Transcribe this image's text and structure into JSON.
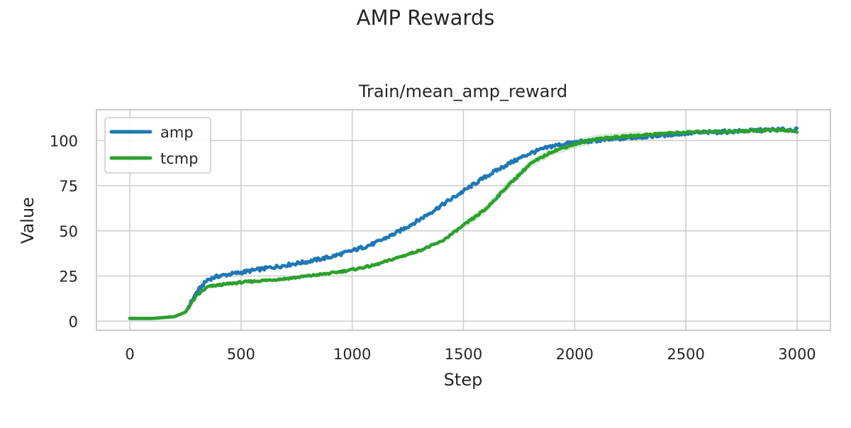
{
  "figure": {
    "suptitle": "AMP Rewards"
  },
  "chart_data": {
    "type": "line",
    "title": "Train/mean_amp_reward",
    "xlabel": "Step",
    "ylabel": "Value",
    "xlim": [
      -150,
      3150
    ],
    "ylim": [
      -5,
      117
    ],
    "xticks": [
      0,
      500,
      1000,
      1500,
      2000,
      2500,
      3000
    ],
    "yticks": [
      0,
      25,
      50,
      75,
      100
    ],
    "grid": true,
    "legend_position": "top-left",
    "series": [
      {
        "name": "amp",
        "color": "#1f77b4",
        "x": [
          0,
          100,
          200,
          250,
          300,
          350,
          400,
          500,
          600,
          700,
          800,
          900,
          1000,
          1100,
          1200,
          1300,
          1400,
          1500,
          1600,
          1700,
          1800,
          1900,
          2000,
          2100,
          2200,
          2300,
          2400,
          2500,
          2600,
          2700,
          2800,
          2900,
          3000
        ],
        "values": [
          1.5,
          1.5,
          2.5,
          5,
          16,
          23,
          25,
          27,
          29,
          31,
          33,
          35.5,
          39,
          43,
          49,
          56,
          64,
          72,
          80,
          87,
          93,
          97,
          99,
          100,
          101,
          102,
          103,
          104,
          104.5,
          105,
          105.5,
          106,
          106
        ]
      },
      {
        "name": "tcmp",
        "color": "#2ca02c",
        "x": [
          0,
          100,
          200,
          250,
          300,
          350,
          400,
          500,
          600,
          700,
          800,
          900,
          1000,
          1100,
          1200,
          1300,
          1400,
          1500,
          1600,
          1700,
          1800,
          1900,
          2000,
          2100,
          2200,
          2300,
          2400,
          2500,
          2600,
          2700,
          2800,
          2900,
          3000
        ],
        "values": [
          1.5,
          1.5,
          2.5,
          5,
          14,
          19,
          20,
          21.5,
          22.5,
          23.5,
          25,
          26.5,
          28.5,
          31,
          35,
          39,
          44,
          53,
          62,
          75,
          87,
          94,
          98,
          101,
          102,
          103,
          104,
          104.5,
          105,
          105,
          105.5,
          106,
          105
        ]
      }
    ]
  }
}
